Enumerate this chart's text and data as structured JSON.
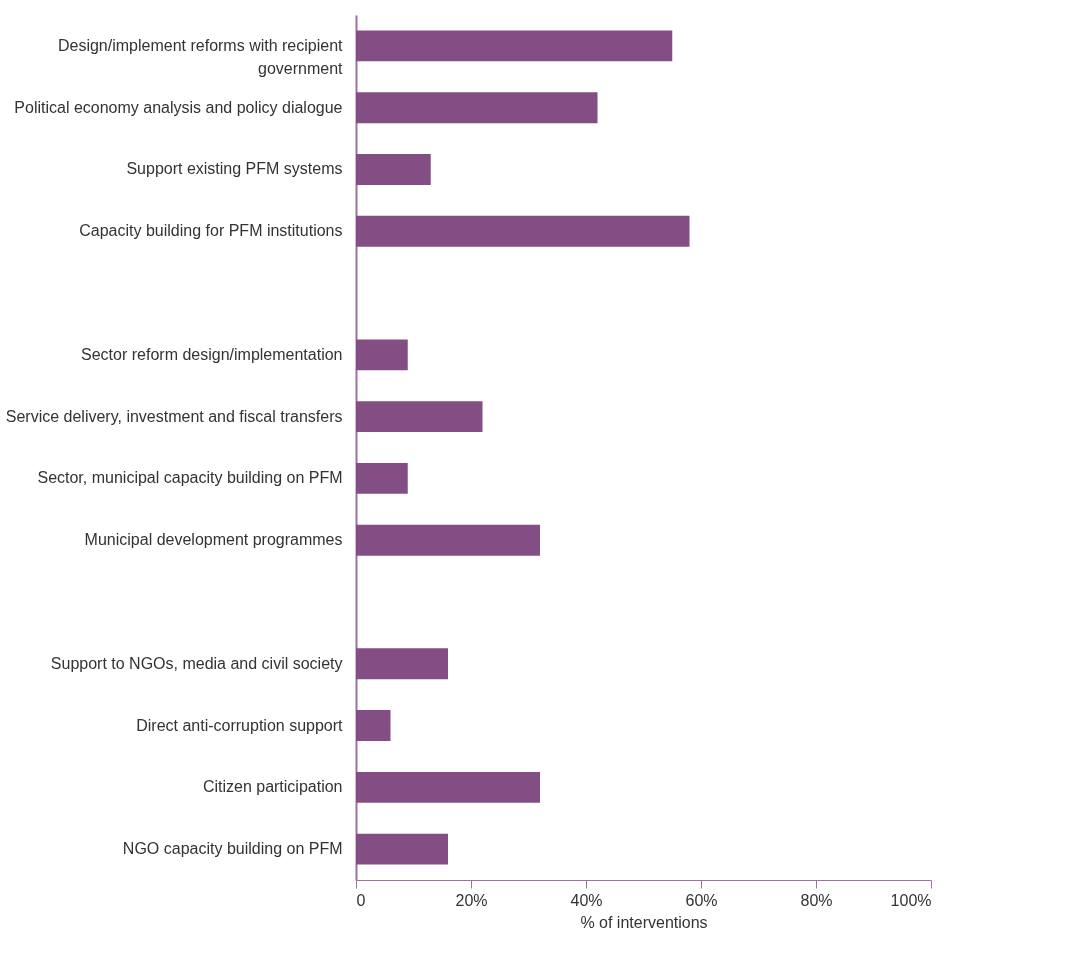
{
  "chart_data": {
    "type": "bar",
    "orientation": "horizontal",
    "categories": [
      "Design/implement reforms with recipient government",
      "Political economy analysis and policy dialogue",
      "Support existing PFM systems",
      "Capacity building for PFM institutions",
      null,
      "Sector reform design/implementation",
      "Service delivery, investment and fiscal transfers",
      "Sector, municipal capacity building on PFM",
      "Municipal development programmes",
      null,
      "Support to NGOs, media and civil society",
      "Direct anti-corruption support",
      "Citizen participation",
      "NGO capacity building on PFM"
    ],
    "values": [
      55,
      42,
      13,
      58,
      null,
      9,
      22,
      9,
      32,
      null,
      16,
      6,
      32,
      16
    ],
    "color": "#834e84",
    "xlabel": "% of interventions",
    "xlim": [
      0,
      100
    ],
    "xticks": [
      0,
      {
        "value": 20,
        "label": "20%"
      },
      {
        "value": 40,
        "label": "40%"
      },
      {
        "value": 60,
        "label": "60%"
      },
      {
        "value": 80,
        "label": "80%"
      },
      {
        "value": 100,
        "label": "100%"
      }
    ],
    "grid": false
  }
}
